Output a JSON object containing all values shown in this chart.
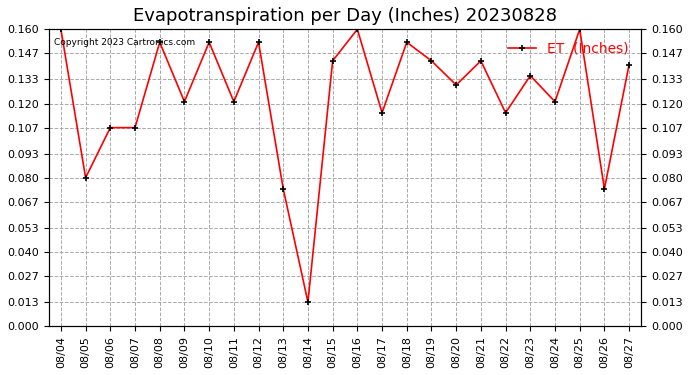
{
  "title": "Evapotranspiration per Day (Inches) 20230828",
  "legend_label": "ET  (Inches)",
  "copyright_text": "Copyright 2023 Cartronics.com",
  "dates": [
    "08/04",
    "08/05",
    "08/06",
    "08/07",
    "08/08",
    "08/09",
    "08/10",
    "08/11",
    "08/12",
    "08/13",
    "08/14",
    "08/15",
    "08/16",
    "08/17",
    "08/18",
    "08/19",
    "08/20",
    "08/21",
    "08/22",
    "08/23",
    "08/24",
    "08/25",
    "08/26",
    "08/27"
  ],
  "values": [
    0.16,
    0.08,
    0.107,
    0.107,
    0.153,
    0.121,
    0.153,
    0.121,
    0.153,
    0.074,
    0.013,
    0.143,
    0.16,
    0.115,
    0.153,
    0.143,
    0.13,
    0.143,
    0.115,
    0.135,
    0.121,
    0.16,
    0.074,
    0.141
  ],
  "line_color": "#ff0000",
  "marker_color": "#000000",
  "background_color": "#ffffff",
  "grid_color": "#aaaaaa",
  "ylim": [
    0.0,
    0.16
  ],
  "yticks": [
    0.0,
    0.013,
    0.027,
    0.04,
    0.053,
    0.067,
    0.08,
    0.093,
    0.107,
    0.12,
    0.133,
    0.147,
    0.16
  ],
  "title_fontsize": 13,
  "tick_fontsize": 8,
  "legend_fontsize": 10
}
